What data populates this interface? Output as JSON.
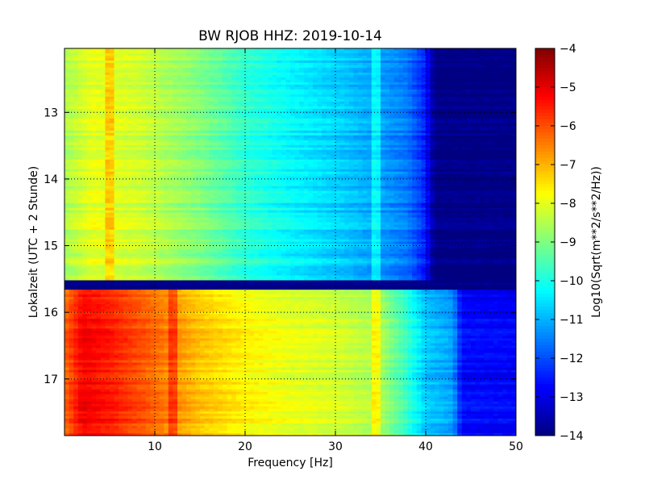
{
  "chart_data": {
    "type": "heatmap",
    "title": "BW RJOB HHZ: 2019-10-14",
    "xlabel": "Frequency [Hz]",
    "ylabel": "Lokalzeit (UTC + 2 Stunde)",
    "xlim": [
      0,
      50
    ],
    "ylim": [
      12.04,
      17.85
    ],
    "y_inverted": true,
    "x_ticks": [
      10,
      20,
      30,
      40,
      50
    ],
    "x_tick_labels": [
      "10",
      "20",
      "30",
      "40",
      "50"
    ],
    "y_ticks": [
      13,
      14,
      15,
      16,
      17
    ],
    "y_tick_labels": [
      "13",
      "14",
      "15",
      "16",
      "17"
    ],
    "grid": true,
    "colorbar": {
      "label": "Log10(Sqrt(m**2/s**2/Hz))",
      "range": [
        -14,
        -4
      ],
      "ticks": [
        -4,
        -5,
        -6,
        -7,
        -8,
        -9,
        -10,
        -11,
        -12,
        -13,
        -14
      ],
      "tick_labels": [
        "−4",
        "−5",
        "−6",
        "−7",
        "−8",
        "−9",
        "−10",
        "−11",
        "−12",
        "−13",
        "−14"
      ],
      "colormap": "jet"
    },
    "segments": [
      {
        "name": "",
        "time_range": [
          12.04,
          15.52
        ],
        "frequency_profile": [
          {
            "f": 0,
            "v": -8.6
          },
          {
            "f": 3,
            "v": -8.0
          },
          {
            "f": 8,
            "v": -8.2
          },
          {
            "f": 15,
            "v": -9.0
          },
          {
            "f": 20,
            "v": -9.8
          },
          {
            "f": 25,
            "v": -10.3
          },
          {
            "f": 30,
            "v": -10.7
          },
          {
            "f": 35,
            "v": -11.2
          },
          {
            "f": 38,
            "v": -11.6
          },
          {
            "f": 40,
            "v": -12.5
          },
          {
            "f": 41,
            "v": -14.0
          },
          {
            "f": 50,
            "v": -14.0
          }
        ],
        "narrowband_lines_hz": [
          5,
          34.5
        ]
      },
      {
        "name": "",
        "time_range": [
          15.52,
          15.66
        ],
        "frequency_profile": [
          {
            "f": 0,
            "v": -13.9
          },
          {
            "f": 50,
            "v": -13.9
          }
        ],
        "narrowband_lines_hz": []
      },
      {
        "name": "",
        "time_range": [
          15.66,
          17.85
        ],
        "frequency_profile": [
          {
            "f": 0,
            "v": -6.3
          },
          {
            "f": 2,
            "v": -5.2
          },
          {
            "f": 5,
            "v": -5.5
          },
          {
            "f": 10,
            "v": -6.3
          },
          {
            "f": 15,
            "v": -7.2
          },
          {
            "f": 20,
            "v": -7.7
          },
          {
            "f": 25,
            "v": -8.0
          },
          {
            "f": 30,
            "v": -8.2
          },
          {
            "f": 35,
            "v": -8.6
          },
          {
            "f": 38,
            "v": -9.8
          },
          {
            "f": 40,
            "v": -10.8
          },
          {
            "f": 43,
            "v": -11.2
          },
          {
            "f": 44,
            "v": -12.7
          },
          {
            "f": 50,
            "v": -12.8
          }
        ],
        "narrowband_lines_hz": [
          12,
          34.5
        ]
      }
    ]
  }
}
